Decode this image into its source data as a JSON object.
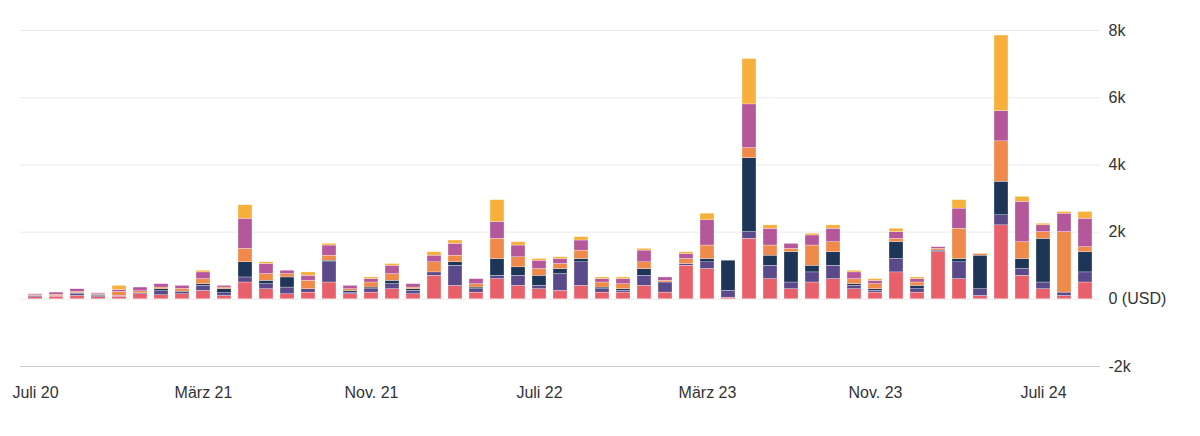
{
  "chart_data": {
    "type": "bar",
    "stacked": true,
    "grid": true,
    "categories": [
      "Juli 20",
      null,
      null,
      null,
      null,
      null,
      null,
      null,
      "März 21",
      null,
      null,
      null,
      null,
      null,
      null,
      null,
      "Nov. 21",
      null,
      null,
      null,
      null,
      null,
      null,
      null,
      "Juli 22",
      null,
      null,
      null,
      null,
      null,
      null,
      null,
      "März 23",
      null,
      null,
      null,
      null,
      null,
      null,
      null,
      "Nov. 23",
      null,
      null,
      null,
      null,
      null,
      null,
      null,
      "Juli 24",
      null,
      null
    ],
    "ylim": [
      -2000,
      8000
    ],
    "yticks": [
      {
        "value": -2000,
        "label": "-2k"
      },
      {
        "value": 0,
        "label": "0 (USD)"
      },
      {
        "value": 2000,
        "label": "2k"
      },
      {
        "value": 4000,
        "label": "4k"
      },
      {
        "value": 6000,
        "label": "6k"
      },
      {
        "value": 8000,
        "label": "8k"
      }
    ],
    "series": [
      {
        "color": "#e8606a",
        "values": [
          60,
          80,
          100,
          60,
          80,
          150,
          120,
          150,
          250,
          100,
          500,
          300,
          150,
          200,
          500,
          150,
          200,
          300,
          150,
          700,
          400,
          200,
          600,
          400,
          300,
          250,
          400,
          200,
          200,
          400,
          200,
          1000,
          900,
          50,
          1800,
          600,
          300,
          500,
          600,
          300,
          200,
          800,
          200,
          1400,
          600,
          100,
          2200,
          700,
          300,
          100,
          500
        ]
      },
      {
        "color": "#5b4a8b",
        "values": [
          40,
          20,
          60,
          40,
          20,
          30,
          120,
          60,
          150,
          80,
          150,
          150,
          200,
          100,
          600,
          50,
          100,
          150,
          100,
          100,
          600,
          100,
          100,
          300,
          100,
          500,
          700,
          100,
          50,
          300,
          300,
          50,
          200,
          200,
          200,
          400,
          200,
          300,
          400,
          100,
          50,
          400,
          100,
          50,
          500,
          200,
          300,
          200,
          200,
          100,
          300
        ]
      },
      {
        "color": "#1d3557",
        "values": [
          0,
          0,
          20,
          30,
          0,
          0,
          60,
          20,
          50,
          120,
          450,
          100,
          300,
          0,
          50,
          50,
          50,
          100,
          50,
          0,
          100,
          50,
          500,
          250,
          300,
          150,
          100,
          50,
          50,
          200,
          0,
          0,
          100,
          900,
          2200,
          300,
          900,
          200,
          400,
          50,
          50,
          500,
          100,
          0,
          100,
          1000,
          1000,
          300,
          1300,
          0,
          600
        ]
      },
      {
        "color": "#f08a4b",
        "values": [
          20,
          40,
          40,
          20,
          120,
          60,
          50,
          80,
          150,
          50,
          400,
          200,
          100,
          250,
          150,
          50,
          150,
          200,
          50,
          300,
          200,
          100,
          600,
          300,
          200,
          150,
          250,
          150,
          150,
          200,
          50,
          150,
          400,
          0,
          300,
          300,
          100,
          600,
          300,
          150,
          150,
          100,
          100,
          50,
          900,
          50,
          1200,
          500,
          200,
          1800,
          150
        ]
      },
      {
        "color": "#b5579b",
        "values": [
          30,
          60,
          80,
          30,
          60,
          110,
          100,
          90,
          200,
          50,
          900,
          300,
          100,
          150,
          300,
          100,
          100,
          250,
          100,
          200,
          350,
          150,
          500,
          350,
          250,
          150,
          300,
          100,
          150,
          350,
          100,
          150,
          750,
          0,
          1300,
          500,
          150,
          300,
          400,
          200,
          100,
          200,
          100,
          50,
          600,
          0,
          900,
          1200,
          200,
          550,
          850
        ]
      },
      {
        "color": "#f7b03c",
        "values": [
          0,
          0,
          0,
          0,
          120,
          0,
          0,
          0,
          50,
          0,
          400,
          50,
          0,
          100,
          50,
          0,
          50,
          50,
          0,
          100,
          100,
          0,
          650,
          100,
          50,
          50,
          100,
          50,
          50,
          50,
          0,
          50,
          200,
          0,
          1350,
          100,
          0,
          50,
          100,
          50,
          50,
          100,
          50,
          0,
          250,
          0,
          2250,
          150,
          50,
          50,
          200
        ]
      }
    ]
  }
}
